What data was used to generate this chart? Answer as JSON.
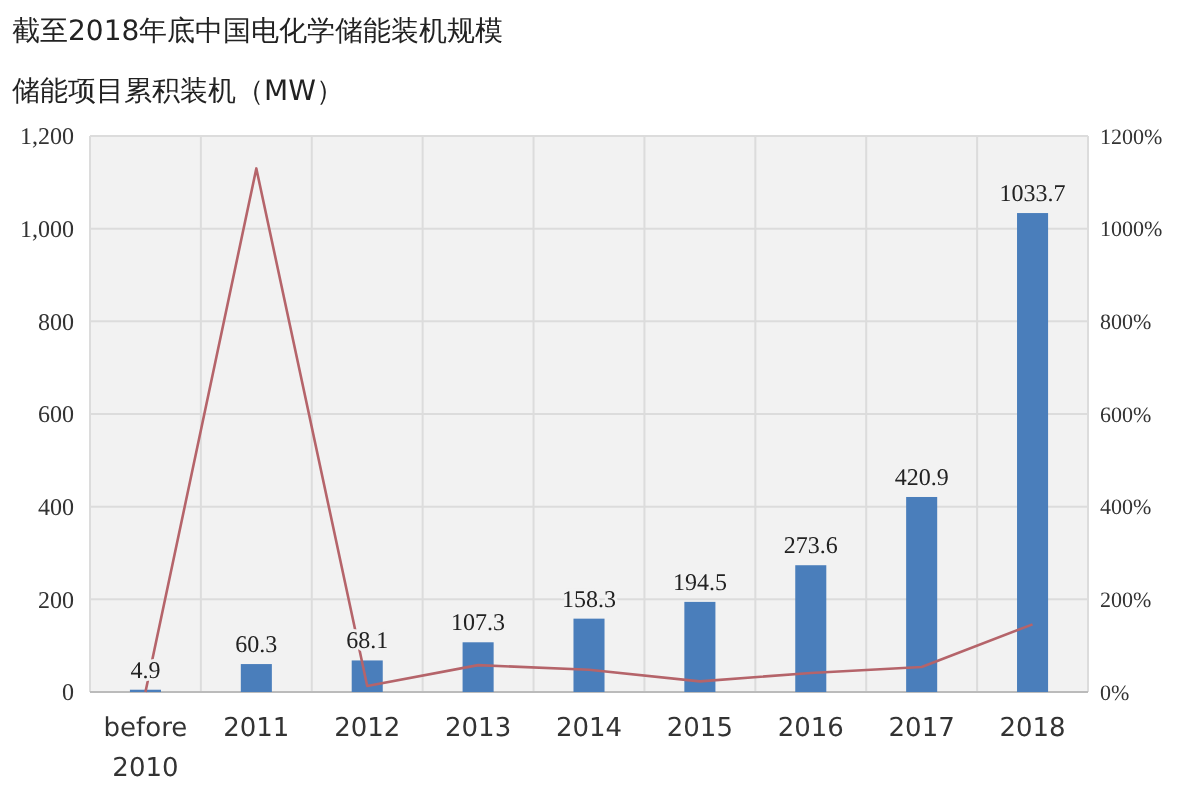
{
  "chart_data": {
    "type": "bar",
    "title": "截至2018年底中国电化学储能装机规模",
    "subtitle": "储能项目累积装机（MW）",
    "categories": [
      "before\n2010",
      "2011",
      "2012",
      "2013",
      "2014",
      "2015",
      "2016",
      "2017",
      "2018"
    ],
    "series": [
      {
        "color": "#4a7ebb",
        "values": [
          4.9,
          60.3,
          68.1,
          107.3,
          158.3,
          194.5,
          273.6,
          420.9,
          1033.7
        ],
        "value_labels": [
          "4.9",
          "60.3",
          "68.1",
          "107.3",
          "158.3",
          "194.5",
          "273.6",
          "420.9",
          "1033.7"
        ]
      },
      {
        "type": "line",
        "axis": "y2",
        "color": "#b5646a",
        "values": [
          0,
          1130,
          13,
          58,
          48,
          23,
          41,
          54,
          146
        ]
      }
    ],
    "ylim": [
      0,
      1200
    ],
    "yticks": [
      {
        "value": 0,
        "label": "0"
      },
      {
        "value": 200,
        "label": "200"
      },
      {
        "value": 400,
        "label": "400"
      },
      {
        "value": 600,
        "label": "600"
      },
      {
        "value": 800,
        "label": "800"
      },
      {
        "value": 1000,
        "label": "1,000"
      },
      {
        "value": 1200,
        "label": "1,200"
      }
    ],
    "y2lim": [
      0,
      1200
    ],
    "y2ticks": [
      {
        "value": 0,
        "label": "0%"
      },
      {
        "value": 200,
        "label": "200%"
      },
      {
        "value": 400,
        "label": "400%"
      },
      {
        "value": 600,
        "label": "600%"
      },
      {
        "value": 800,
        "label": "800%"
      },
      {
        "value": 1000,
        "label": "1000%"
      },
      {
        "value": 1200,
        "label": "1200%"
      }
    ],
    "grid": true,
    "marker": "none"
  }
}
